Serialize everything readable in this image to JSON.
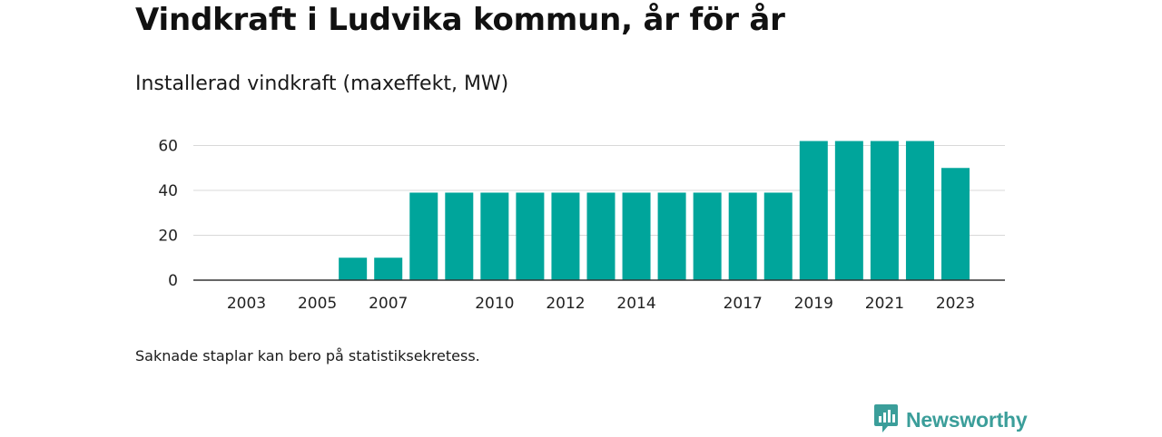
{
  "title": "Vindkraft i Ludvika kommun, år för år",
  "subtitle": "Installerad vindkraft (maxeffekt, MW)",
  "note": "Saknade staplar kan bero på statistiksekretess.",
  "brand": {
    "name": "Newsworthy",
    "icon": "newsworthy-chart-bubble-icon"
  },
  "colors": {
    "bar": "#00a59b",
    "grid": "#d9d9d9",
    "axis": "#333333",
    "brand": "#3b9e9a"
  },
  "chart_data": {
    "type": "bar",
    "title": "Installerad vindkraft (maxeffekt, MW)",
    "categories": [
      "2003",
      "2004",
      "2005",
      "2006",
      "2007",
      "2008",
      "2009",
      "2010",
      "2011",
      "2012",
      "2013",
      "2014",
      "2015",
      "2016",
      "2017",
      "2018",
      "2019",
      "2020",
      "2021",
      "2022",
      "2023"
    ],
    "values": [
      0,
      0,
      0,
      10,
      10,
      39,
      39,
      39,
      39,
      39,
      39,
      39,
      39,
      39,
      39,
      39,
      62,
      62,
      62,
      62,
      50
    ],
    "x_tick_labels": [
      "2003",
      "2005",
      "2007",
      "2010",
      "2012",
      "2014",
      "2017",
      "2019",
      "2021",
      "2023"
    ],
    "y_ticks": [
      0,
      20,
      40,
      60
    ],
    "ylim": [
      0,
      62
    ],
    "xlabel": "",
    "ylabel": "",
    "grid": true,
    "legend": "none"
  }
}
